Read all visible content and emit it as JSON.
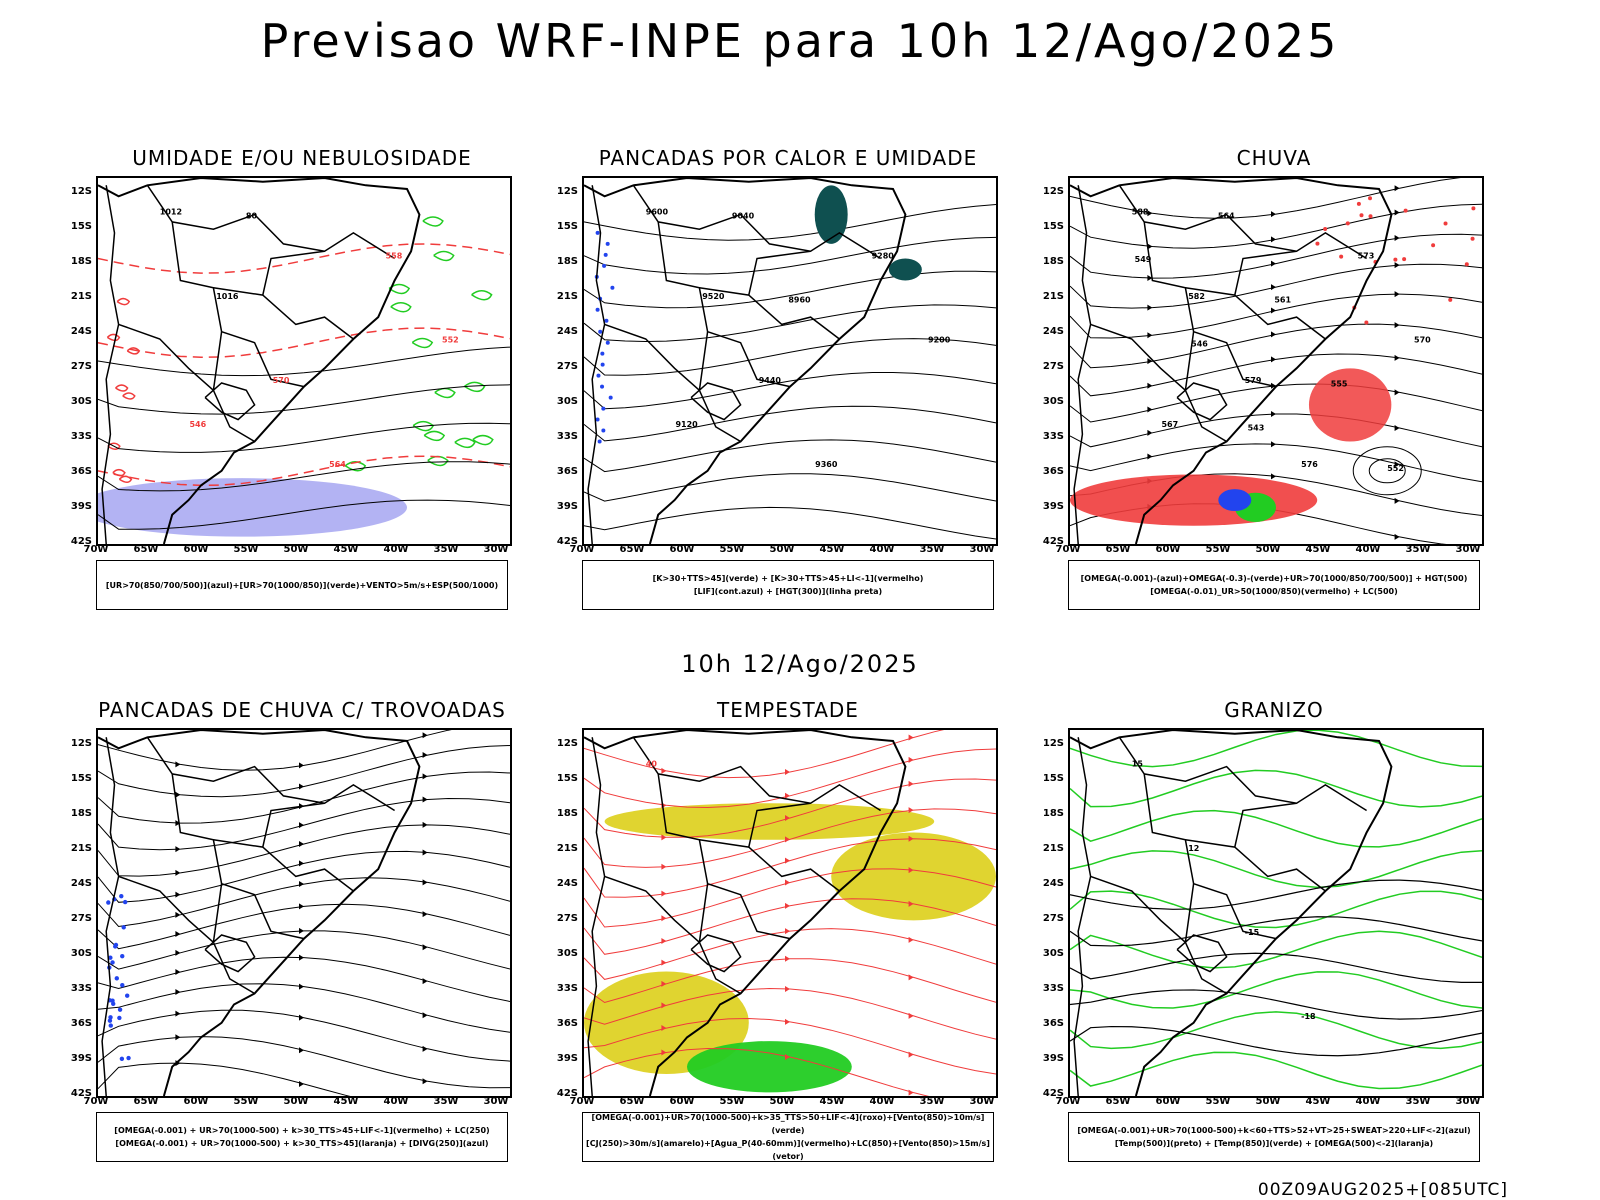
{
  "title": "Previsao WRF-INPE  para 10h 12/Ago/2025",
  "subtitle": "10h 12/Ago/2025",
  "footer": "00Z09AUG2025+[085UTC]",
  "lat_labels": [
    "12S",
    "15S",
    "18S",
    "21S",
    "24S",
    "27S",
    "30S",
    "33S",
    "36S",
    "39S",
    "42S"
  ],
  "lon_labels": [
    "70W",
    "65W",
    "60W",
    "55W",
    "50W",
    "45W",
    "40W",
    "35W",
    "30W"
  ],
  "panels": [
    {
      "title": "UMIDADE E/OU NEBULOSIDADE",
      "legend": [
        "[UR>70(850/700/500)](azul)+[UR>70(1000/850)](verde)+VENTO>5m/s+ESP(500/1000)"
      ],
      "contour_labels": [
        "1012",
        "1016",
        "570",
        "564",
        "558",
        "552",
        "546",
        "80"
      ]
    },
    {
      "title": "PANCADAS POR CALOR E UMIDADE",
      "legend": [
        "[K>30+TTS>45](verde) + [K>30+TTS>45+LI<-1](vermelho)",
        "[LIF](cont.azul) + [HGT(300)](linha preta)"
      ],
      "contour_labels": [
        "9600",
        "9520",
        "9440",
        "9360",
        "9280",
        "9200",
        "9120",
        "9040",
        "8960"
      ]
    },
    {
      "title": "CHUVA",
      "legend": [
        "[OMEGA(-0.001)-(azul)+OMEGA(-0.3)-(verde)+UR>70(1000/850/700/500)] + HGT(500)",
        "[OMEGA(-0.01)_UR>50(1000/850)(vermelho) + LC(500)"
      ],
      "contour_labels": [
        "588",
        "582",
        "579",
        "576",
        "573",
        "570",
        "567",
        "564",
        "561",
        "555",
        "552",
        "549",
        "546",
        "543"
      ]
    },
    {
      "title": "PANCADAS DE CHUVA C/ TROVOADAS",
      "legend": [
        "[OMEGA(-0.001) + UR>70(1000-500) + k>30_TTS>45+LIF<-1](vermelho) + LC(250)",
        "[OMEGA(-0.001) + UR>70(1000-500) + k>30_TTS>45](laranja) + [DIVG(250)](azul)"
      ],
      "contour_labels": []
    },
    {
      "title": "TEMPESTADE",
      "legend": [
        "[OMEGA(-0.001)+UR>70(1000-500)+k>35_TTS>50+LIF<-4](roxo)+[Vento(850)>10m/s](verde)",
        "[CJ(250)>30m/s](amarelo)+[Agua_P(40-60mm)](vermelho)+LC(850)+[Vento(850)>15m/s](vetor)"
      ],
      "contour_labels": [
        "40"
      ]
    },
    {
      "title": "GRANIZO",
      "legend": [
        "[OMEGA(-0.001)+UR>70(1000-500)+k<60+TTS>52+VT>25+SWEAT>220+LIF<-2](azul)",
        "[Temp(500)](preto) + [Temp(850)](verde) + [OMEGA(500)<-2](laranja)"
      ],
      "contour_labels": [
        "15",
        "12",
        "-15",
        "-18"
      ]
    }
  ],
  "colors": {
    "red": "#f03c3c",
    "green": "#22cc22",
    "blue": "#2244ee",
    "yellow": "#e0d430",
    "teal": "#0f5050",
    "lavender": "#a0a0f0"
  }
}
